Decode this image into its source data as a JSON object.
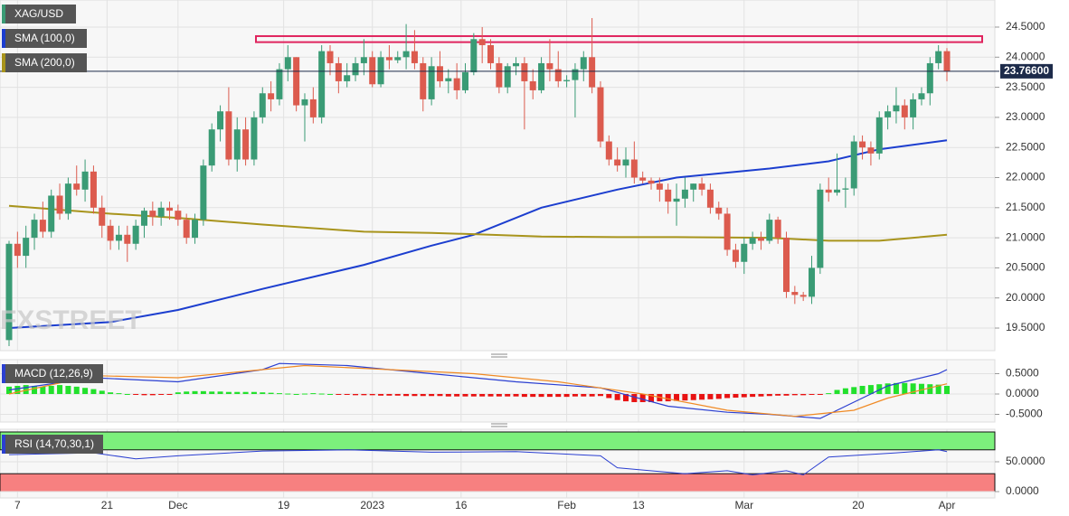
{
  "chart_data": [
    {
      "type": "candlestick",
      "title": "XAG/USD",
      "watermark": "FXSTREET",
      "colors": {
        "up": "#3a9b75",
        "down": "#dc5b4e"
      },
      "candles": [
        [
          19.3,
          20.95,
          19.2,
          20.9
        ],
        [
          20.9,
          21.1,
          20.5,
          20.7
        ],
        [
          20.7,
          21.2,
          20.5,
          21.0
        ],
        [
          21.0,
          21.4,
          20.8,
          21.3
        ],
        [
          21.3,
          21.6,
          21.0,
          21.1
        ],
        [
          21.1,
          21.8,
          21.0,
          21.7
        ],
        [
          21.7,
          21.9,
          21.3,
          21.4
        ],
        [
          21.4,
          22.0,
          21.3,
          21.9
        ],
        [
          21.9,
          22.2,
          21.7,
          21.8
        ],
        [
          21.8,
          22.3,
          21.6,
          22.1
        ],
        [
          22.1,
          22.2,
          21.4,
          21.5
        ],
        [
          21.5,
          21.7,
          21.0,
          21.2
        ],
        [
          21.2,
          21.3,
          20.8,
          20.95
        ],
        [
          20.95,
          21.2,
          20.8,
          21.05
        ],
        [
          21.05,
          21.2,
          20.6,
          20.9
        ],
        [
          20.9,
          21.3,
          20.8,
          21.2
        ],
        [
          21.2,
          21.5,
          21.0,
          21.45
        ],
        [
          21.45,
          21.6,
          21.2,
          21.35
        ],
        [
          21.35,
          21.6,
          21.2,
          21.5
        ],
        [
          21.5,
          21.6,
          21.3,
          21.45
        ],
        [
          21.45,
          21.55,
          21.2,
          21.3
        ],
        [
          21.3,
          21.4,
          20.9,
          21.0
        ],
        [
          21.0,
          21.4,
          20.9,
          21.3
        ],
        [
          21.3,
          22.3,
          21.2,
          22.2
        ],
        [
          22.2,
          22.9,
          22.1,
          22.8
        ],
        [
          22.8,
          23.2,
          22.6,
          23.1
        ],
        [
          23.1,
          23.5,
          22.2,
          22.3
        ],
        [
          22.3,
          23.0,
          22.1,
          22.8
        ],
        [
          22.8,
          23.0,
          22.2,
          22.3
        ],
        [
          22.3,
          23.1,
          22.2,
          23.0
        ],
        [
          23.0,
          23.5,
          22.9,
          23.4
        ],
        [
          23.4,
          23.6,
          23.1,
          23.3
        ],
        [
          23.3,
          23.9,
          23.2,
          23.8
        ],
        [
          23.8,
          24.2,
          23.6,
          24.0
        ],
        [
          24.0,
          24.0,
          23.1,
          23.2
        ],
        [
          23.2,
          23.4,
          22.6,
          23.3
        ],
        [
          23.3,
          23.5,
          22.9,
          23.0
        ],
        [
          23.0,
          24.2,
          22.9,
          24.1
        ],
        [
          24.1,
          24.2,
          23.7,
          23.9
        ],
        [
          23.9,
          24.0,
          23.4,
          23.6
        ],
        [
          23.6,
          23.9,
          23.5,
          23.7
        ],
        [
          23.7,
          24.0,
          23.6,
          23.9
        ],
        [
          23.9,
          24.3,
          23.7,
          24.0
        ],
        [
          24.0,
          24.1,
          23.5,
          23.55
        ],
        [
          23.55,
          24.1,
          23.5,
          24.0
        ],
        [
          24.0,
          24.2,
          23.8,
          23.95
        ],
        [
          23.95,
          24.1,
          23.9,
          24.0
        ],
        [
          24.0,
          24.55,
          23.8,
          24.1
        ],
        [
          24.1,
          24.45,
          23.8,
          23.9
        ],
        [
          23.9,
          24.0,
          23.1,
          23.3
        ],
        [
          23.3,
          24.0,
          23.2,
          23.85
        ],
        [
          23.85,
          24.1,
          23.5,
          23.6
        ],
        [
          23.6,
          23.8,
          23.4,
          23.65
        ],
        [
          23.65,
          23.9,
          23.3,
          23.45
        ],
        [
          23.45,
          23.9,
          23.4,
          23.75
        ],
        [
          23.75,
          24.4,
          23.7,
          24.3
        ],
        [
          24.3,
          24.5,
          23.9,
          24.2
        ],
        [
          24.2,
          24.3,
          23.8,
          23.9
        ],
        [
          23.9,
          24.0,
          23.4,
          23.5
        ],
        [
          23.5,
          23.9,
          23.4,
          23.85
        ],
        [
          23.85,
          24.0,
          23.7,
          23.9
        ],
        [
          23.9,
          24.0,
          22.8,
          23.6
        ],
        [
          23.6,
          23.8,
          23.3,
          23.45
        ],
        [
          23.45,
          24.0,
          23.4,
          23.9
        ],
        [
          23.9,
          24.3,
          23.6,
          23.8
        ],
        [
          23.8,
          24.1,
          23.5,
          23.6
        ],
        [
          23.6,
          23.7,
          23.5,
          23.62
        ],
        [
          23.62,
          23.9,
          23.0,
          23.8
        ],
        [
          23.8,
          24.1,
          23.6,
          24.0
        ],
        [
          24.0,
          24.65,
          23.4,
          23.5
        ],
        [
          23.5,
          23.6,
          22.5,
          22.6
        ],
        [
          22.6,
          22.7,
          22.2,
          22.3
        ],
        [
          22.3,
          22.5,
          22.1,
          22.2
        ],
        [
          22.2,
          22.5,
          22.0,
          22.3
        ],
        [
          22.3,
          22.6,
          21.9,
          22.0
        ],
        [
          22.0,
          22.1,
          21.9,
          21.95
        ],
        [
          21.95,
          22.0,
          21.8,
          21.9
        ],
        [
          21.9,
          22.0,
          21.6,
          21.8
        ],
        [
          21.8,
          21.9,
          21.4,
          21.6
        ],
        [
          21.6,
          21.9,
          21.2,
          21.65
        ],
        [
          21.65,
          22.0,
          21.5,
          21.8
        ],
        [
          21.8,
          21.9,
          21.6,
          21.9
        ],
        [
          21.9,
          22.0,
          21.7,
          21.8
        ],
        [
          21.8,
          21.9,
          21.4,
          21.5
        ],
        [
          21.5,
          21.6,
          21.3,
          21.4
        ],
        [
          21.4,
          21.5,
          20.7,
          20.8
        ],
        [
          20.8,
          20.9,
          20.5,
          20.6
        ],
        [
          20.6,
          21.0,
          20.4,
          20.9
        ],
        [
          20.9,
          21.1,
          20.8,
          21.0
        ],
        [
          21.0,
          21.1,
          20.8,
          20.95
        ],
        [
          20.95,
          21.4,
          20.9,
          21.3
        ],
        [
          21.3,
          21.35,
          20.9,
          21.0
        ],
        [
          21.0,
          21.1,
          20.0,
          20.1
        ],
        [
          20.1,
          20.2,
          19.9,
          20.05
        ],
        [
          20.05,
          20.1,
          19.95,
          20.02
        ],
        [
          20.02,
          20.7,
          19.9,
          20.5
        ],
        [
          20.5,
          21.9,
          20.4,
          21.8
        ],
        [
          21.8,
          22.0,
          21.6,
          21.75
        ],
        [
          21.75,
          22.4,
          21.7,
          21.8
        ],
        [
          21.8,
          22.0,
          21.5,
          21.82
        ],
        [
          21.82,
          22.7,
          21.7,
          22.6
        ],
        [
          22.6,
          22.7,
          22.3,
          22.5
        ],
        [
          22.5,
          22.6,
          22.2,
          22.4
        ],
        [
          22.4,
          23.1,
          22.3,
          23.0
        ],
        [
          23.0,
          23.2,
          22.8,
          23.1
        ],
        [
          23.1,
          23.5,
          22.9,
          23.2
        ],
        [
          23.2,
          23.3,
          22.8,
          23.0
        ],
        [
          23.0,
          23.4,
          22.8,
          23.3
        ],
        [
          23.3,
          23.5,
          23.2,
          23.4
        ],
        [
          23.4,
          24.0,
          23.2,
          23.9
        ],
        [
          23.9,
          24.2,
          23.8,
          24.1
        ],
        [
          24.1,
          24.15,
          23.6,
          23.766
        ]
      ],
      "series": [
        {
          "name": "SMA (100,0)",
          "color": "#1c3ecf",
          "x": [
            0,
            12,
            20,
            30,
            42,
            50,
            55,
            63,
            72,
            79,
            90,
            97,
            103,
            111
          ],
          "values": [
            19.5,
            19.6,
            19.8,
            20.15,
            20.55,
            20.87,
            21.05,
            21.5,
            21.8,
            22.0,
            22.15,
            22.27,
            22.47,
            22.62
          ]
        },
        {
          "name": "SMA (200,0)",
          "color": "#a8941c",
          "x": [
            0,
            12,
            20,
            30,
            42,
            50,
            55,
            63,
            72,
            79,
            90,
            97,
            103,
            111
          ],
          "values": [
            21.53,
            21.4,
            21.33,
            21.22,
            21.1,
            21.08,
            21.06,
            21.02,
            21.01,
            21.01,
            21.0,
            20.95,
            20.95,
            21.05
          ]
        }
      ],
      "zone": [
        24.25,
        24.35
      ],
      "zone_color": "#e0245e",
      "last_price": {
        "value": 23.766,
        "label": "23.76600"
      },
      "xticks": [
        {
          "value": 1,
          "label": "7"
        },
        {
          "value": 11.6,
          "label": "21"
        },
        {
          "value": 20,
          "label": "Dec"
        },
        {
          "value": 32.5,
          "label": "19"
        },
        {
          "value": 43,
          "label": "2023"
        },
        {
          "value": 53.5,
          "label": "16"
        },
        {
          "value": 66,
          "label": "Feb"
        },
        {
          "value": 74.5,
          "label": "13"
        },
        {
          "value": 87,
          "label": "Mar"
        },
        {
          "value": 100.5,
          "label": "20"
        },
        {
          "value": 111,
          "label": "Apr"
        }
      ],
      "ylim": [
        19.125,
        24.95
      ],
      "yticks": [
        {
          "value": 19.5,
          "label": "19.5000"
        },
        {
          "value": 20,
          "label": "20.0000"
        },
        {
          "value": 20.5,
          "label": "20.5000"
        },
        {
          "value": 21,
          "label": "21.0000"
        },
        {
          "value": 21.5,
          "label": "21.5000"
        },
        {
          "value": 22,
          "label": "22.0000"
        },
        {
          "value": 22.5,
          "label": "22.5000"
        },
        {
          "value": 23,
          "label": "23.0000"
        },
        {
          "value": 23.5,
          "label": "23.5000"
        },
        {
          "value": 24,
          "label": "24.0000"
        },
        {
          "value": 24.5,
          "label": "24.5000"
        }
      ],
      "grid": true
    },
    {
      "type": "macd",
      "title": "MACD (12,26,9)",
      "colors": {
        "up": "#22e02c",
        "down": "#e81212"
      },
      "histogram": [
        0.18,
        0.2,
        0.22,
        0.2,
        0.18,
        0.2,
        0.22,
        0.2,
        0.18,
        0.15,
        0.12,
        0.08,
        0.04,
        0.02,
        0.0,
        -0.02,
        -0.03,
        -0.03,
        -0.02,
        -0.01,
        0.04,
        0.06,
        0.07,
        0.07,
        0.06,
        0.06,
        0.05,
        0.05,
        0.05,
        0.05,
        0.04,
        0.03,
        0.02,
        0.01,
        0.0,
        0.01,
        0.02,
        0.01,
        0.0,
        -0.01,
        -0.02,
        -0.03,
        -0.03,
        -0.03,
        -0.04,
        -0.04,
        -0.04,
        -0.05,
        -0.05,
        -0.05,
        -0.05,
        -0.05,
        -0.06,
        -0.06,
        -0.06,
        -0.06,
        -0.06,
        -0.06,
        -0.06,
        -0.06,
        -0.06,
        -0.07,
        -0.07,
        -0.07,
        -0.07,
        -0.07,
        -0.07,
        -0.06,
        -0.06,
        -0.06,
        -0.05,
        -0.1,
        -0.15,
        -0.18,
        -0.2,
        -0.2,
        -0.2,
        -0.18,
        -0.18,
        -0.17,
        -0.16,
        -0.15,
        -0.14,
        -0.13,
        -0.12,
        -0.1,
        -0.09,
        -0.08,
        -0.07,
        -0.06,
        -0.05,
        -0.04,
        -0.04,
        -0.03,
        -0.03,
        -0.02,
        -0.01,
        0.02,
        0.1,
        0.14,
        0.17,
        0.2,
        0.22,
        0.24,
        0.26,
        0.27,
        0.27,
        0.26,
        0.25,
        0.24,
        0.23,
        0.2
      ],
      "series": [
        {
          "color": "#2b3fd1",
          "x": [
            0,
            10,
            20,
            30,
            32,
            40,
            50,
            60,
            70,
            78,
            85,
            90,
            96,
            100,
            104,
            110,
            111
          ],
          "values": [
            0.1,
            0.4,
            0.3,
            0.6,
            0.75,
            0.7,
            0.5,
            0.3,
            0.15,
            -0.3,
            -0.45,
            -0.5,
            -0.6,
            -0.2,
            0.2,
            0.5,
            0.6
          ]
        },
        {
          "color": "#f08a24",
          "x": [
            0,
            10,
            20,
            30,
            35,
            45,
            55,
            65,
            75,
            85,
            93,
            100,
            104,
            111
          ],
          "values": [
            0.0,
            0.45,
            0.4,
            0.6,
            0.7,
            0.6,
            0.5,
            0.3,
            0.0,
            -0.4,
            -0.55,
            -0.4,
            -0.1,
            0.25
          ]
        }
      ],
      "ylim": [
        -0.689,
        0.844
      ],
      "yticks": [
        {
          "value": 0.5,
          "label": "0.5000"
        },
        {
          "value": 0,
          "label": "0.0000"
        },
        {
          "value": -0.5,
          "label": "-0.5000"
        }
      ]
    },
    {
      "type": "rsi",
      "title": "RSI (14,70,30,1)",
      "bands": [
        70,
        30
      ],
      "band_colors": [
        "#7cf07c",
        "#f78080"
      ],
      "series": [
        {
          "color": "#2b3fd1",
          "x": [
            0,
            10,
            15,
            20,
            30,
            40,
            50,
            60,
            70,
            72,
            80,
            85,
            88,
            92,
            94,
            97,
            105,
            110,
            111
          ],
          "values": [
            62,
            65,
            55,
            60,
            68,
            70,
            66,
            67,
            60,
            40,
            30,
            35,
            28,
            35,
            28,
            58,
            65,
            70,
            67
          ]
        }
      ],
      "ylim": [
        -10.6,
        104.5
      ],
      "yticks": [
        {
          "value": 50,
          "label": "50.0000"
        },
        {
          "value": 0,
          "label": "0.0000"
        }
      ]
    }
  ]
}
